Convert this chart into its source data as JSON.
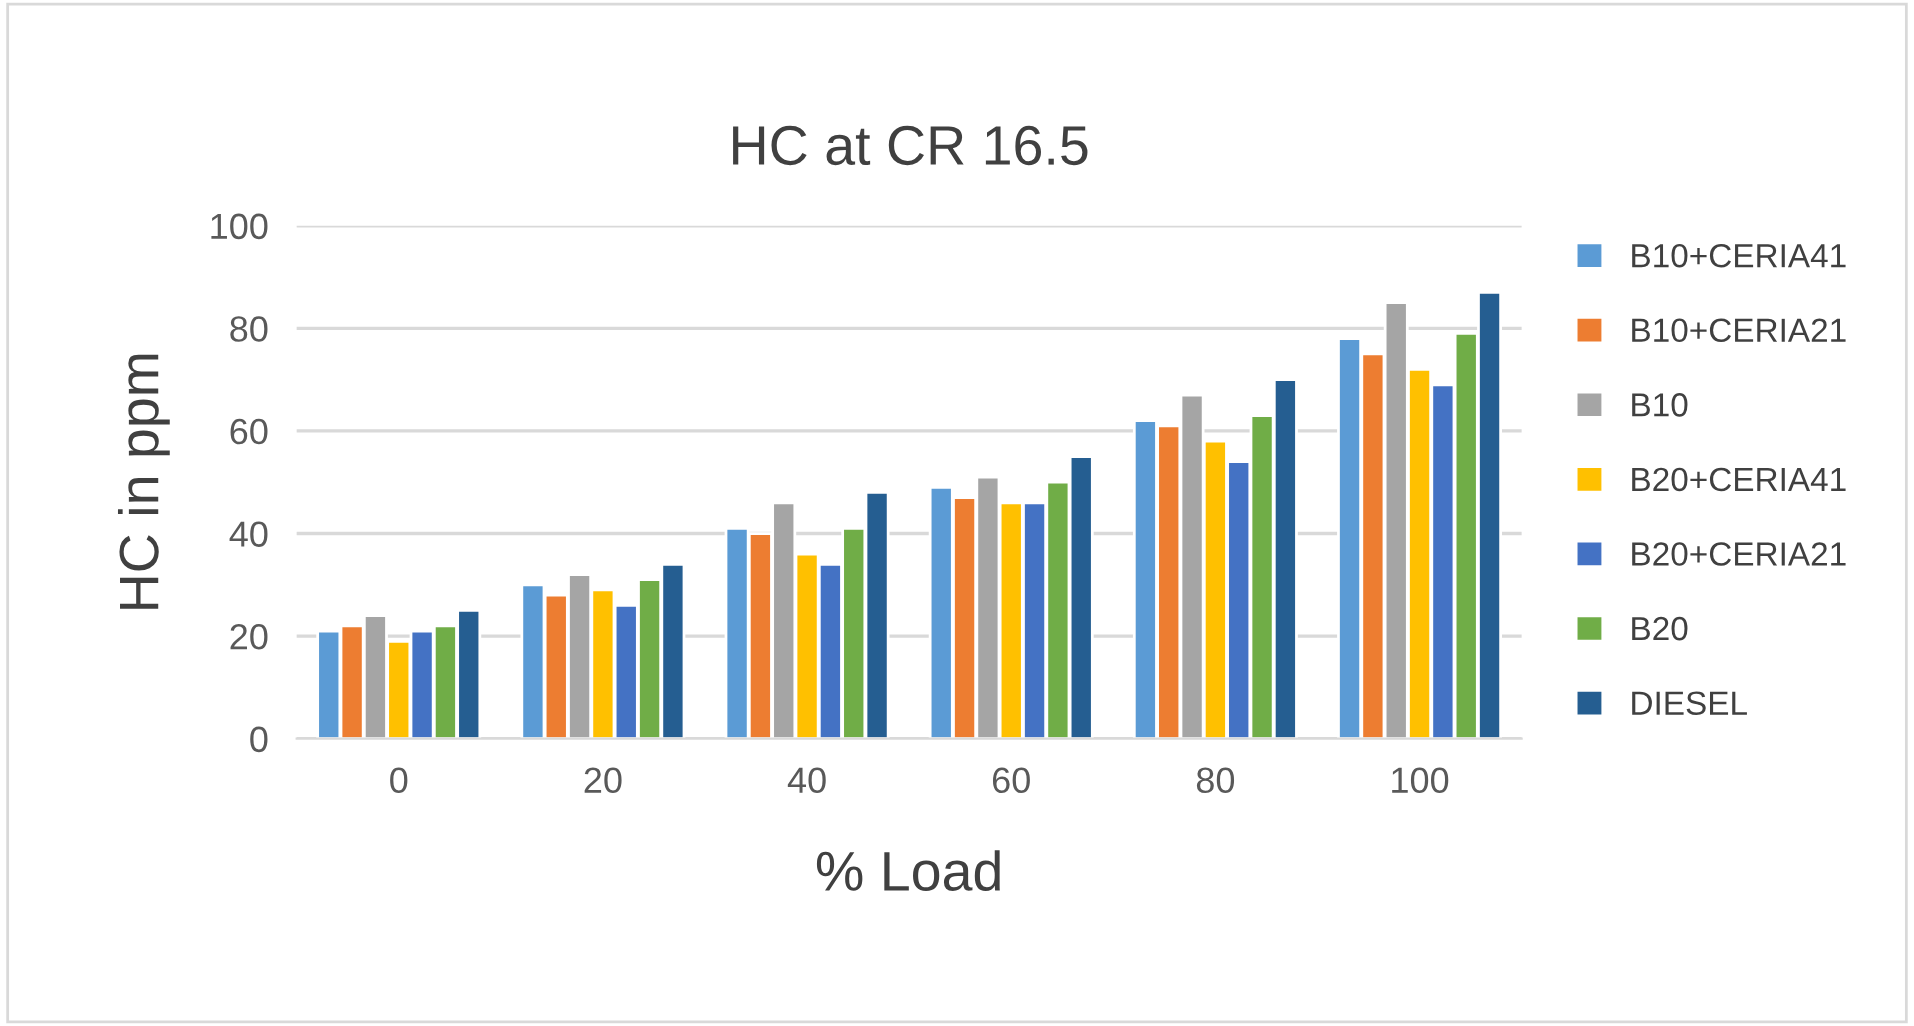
{
  "chart_data": {
    "type": "bar",
    "title": "HC at CR 16.5",
    "xlabel": "% Load",
    "ylabel": "HC in ppm",
    "categories": [
      "0",
      "20",
      "40",
      "60",
      "80",
      "100"
    ],
    "series": [
      {
        "name": "B10+CERIA41",
        "color": "#5b9bd5",
        "values": [
          21,
          30,
          41,
          49,
          62,
          78
        ]
      },
      {
        "name": "B10+CERIA21",
        "color": "#ed7d31",
        "values": [
          22,
          28,
          40,
          47,
          61,
          75
        ]
      },
      {
        "name": "B10",
        "color": "#a5a5a5",
        "values": [
          24,
          32,
          46,
          51,
          67,
          85
        ]
      },
      {
        "name": "B20+CERIA41",
        "color": "#ffc000",
        "values": [
          19,
          29,
          36,
          46,
          58,
          72
        ]
      },
      {
        "name": "B20+CERIA21",
        "color": "#4472c4",
        "values": [
          21,
          26,
          34,
          46,
          54,
          69
        ]
      },
      {
        "name": "B20",
        "color": "#70ad47",
        "values": [
          22,
          31,
          41,
          50,
          63,
          79
        ]
      },
      {
        "name": "DIESEL",
        "color": "#255e91",
        "values": [
          25,
          34,
          48,
          55,
          70,
          87
        ]
      }
    ],
    "ylim": [
      0,
      100
    ],
    "yticks": [
      0,
      20,
      40,
      60,
      80,
      100
    ],
    "grid": "y",
    "legend": "right"
  }
}
